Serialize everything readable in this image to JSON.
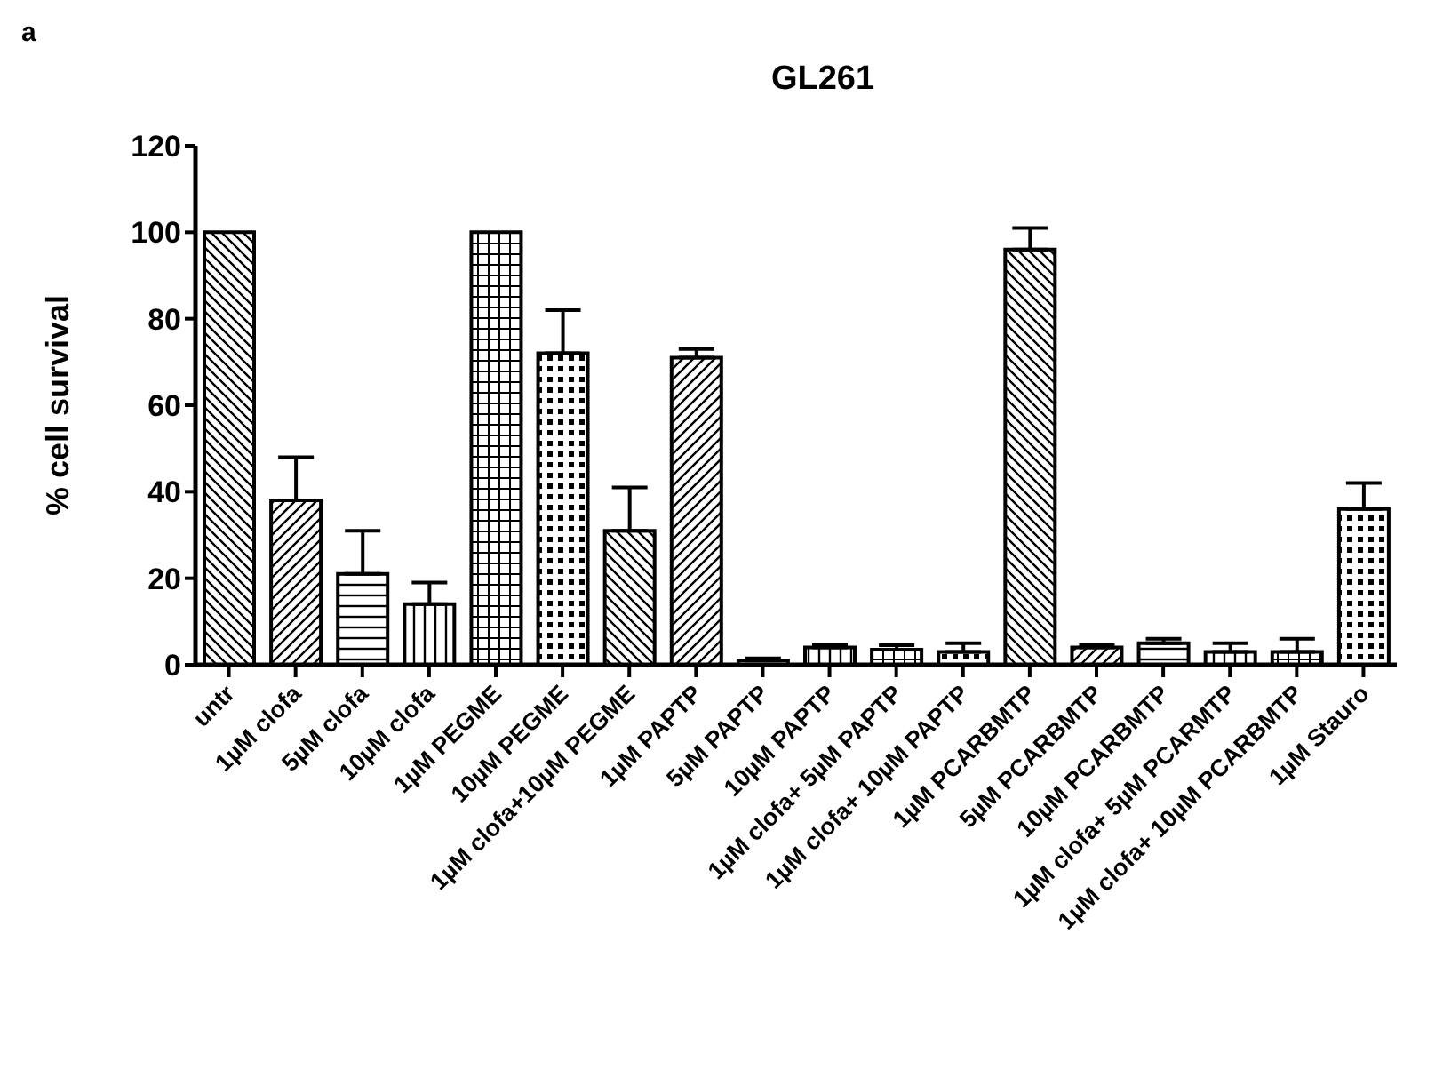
{
  "chart_data": {
    "type": "bar",
    "title": "GL261",
    "ylabel": "% cell survival",
    "annotations": [
      "a"
    ],
    "categories": [
      "untr",
      "1µM clofa",
      "5µM clofa",
      "10µM clofa",
      "1µM PEGME",
      "10µM PEGME",
      "1µM clofa+10µM PEGME",
      "1µM PAPTP",
      "5µM PAPTP",
      "10µM PAPTP",
      "1µM clofa+ 5µM PAPTP",
      "1µM clofa+ 10µM PAPTP",
      "1µM PCARBMTP",
      "5µM PCARBMTP",
      "10µM PCARBMTP",
      "1µM clofa+ 5µM PCARMTP",
      "1µM clofa+ 10µM PCARBMTP",
      "1µM Stauro"
    ],
    "values": [
      100,
      38,
      21,
      14,
      100,
      72,
      31,
      71,
      1,
      4,
      3.5,
      3,
      96,
      4,
      5,
      3,
      3,
      36
    ],
    "errors": [
      null,
      10,
      10,
      5,
      null,
      10,
      10,
      2,
      0.5,
      0.5,
      1,
      2,
      5,
      0.5,
      1,
      2,
      3,
      6
    ],
    "color": "#000000",
    "ylim": [
      0,
      120
    ],
    "yticks": [
      0,
      20,
      40,
      60,
      80,
      100,
      120
    ]
  }
}
